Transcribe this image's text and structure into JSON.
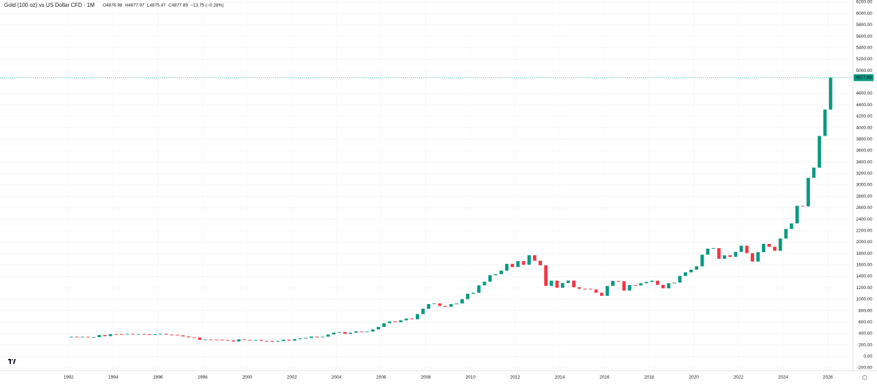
{
  "chart_data": {
    "type": "candlestick",
    "title": "Gold (100 oz) vs US Dollar CFD · 1M",
    "ohlc_text": [
      "O4876.98",
      "H4877.97",
      "L4875.47",
      "C4877.89",
      "−13.75 (−0.28%)"
    ],
    "up_color": "#089981",
    "down_color": "#f23645",
    "price_line": 4877.89,
    "grid": true,
    "xlim": [
      1988.93,
      2027.13
    ],
    "xticks": [
      1992,
      1994,
      1996,
      1998,
      2000,
      2002,
      2004,
      2006,
      2008,
      2010,
      2012,
      2014,
      2016,
      2018,
      2020,
      2022,
      2024,
      2026
    ],
    "ylim": [
      -200,
      6200
    ],
    "yticks": [
      {
        "value": -200,
        "label": "-200.00"
      },
      {
        "value": 0,
        "label": "0.00"
      },
      {
        "value": 200,
        "label": "200.00"
      },
      {
        "value": 400,
        "label": "400.00"
      },
      {
        "value": 600,
        "label": "600.00"
      },
      {
        "value": 800,
        "label": "800.00"
      },
      {
        "value": 1000,
        "label": "1000.00"
      },
      {
        "value": 1200,
        "label": "1200.00"
      },
      {
        "value": 1400,
        "label": "1400.00"
      },
      {
        "value": 1600,
        "label": "1600.00"
      },
      {
        "value": 1800,
        "label": "1800.00"
      },
      {
        "value": 2000,
        "label": "2000.00"
      },
      {
        "value": 2200,
        "label": "2200.00"
      },
      {
        "value": 2400,
        "label": "2400.00"
      },
      {
        "value": 2600,
        "label": "2600.00"
      },
      {
        "value": 2800,
        "label": "2800.00"
      },
      {
        "value": 3000,
        "label": "3000.00"
      },
      {
        "value": 3200,
        "label": "3200.00"
      },
      {
        "value": 3400,
        "label": "3400.00"
      },
      {
        "value": 3600,
        "label": "3600.00"
      },
      {
        "value": 3800,
        "label": "3800.00"
      },
      {
        "value": 4000,
        "label": "4000.00"
      },
      {
        "value": 4200,
        "label": "4200.00"
      },
      {
        "value": 4400,
        "label": "4400.00"
      },
      {
        "value": 4600,
        "label": "4600.00"
      },
      {
        "value": 5000,
        "label": "5000.00"
      },
      {
        "value": 5200,
        "label": "5200.00"
      },
      {
        "value": 5400,
        "label": "5400.00"
      },
      {
        "value": 5600,
        "label": "5600.00"
      },
      {
        "value": 5800,
        "label": "5800.00"
      },
      {
        "value": 6000,
        "label": "6000.00"
      },
      {
        "value": 6200,
        "label": "6200.00"
      }
    ],
    "x": [
      1992.125,
      1992.375,
      1992.625,
      1992.875,
      1993.125,
      1993.375,
      1993.625,
      1993.875,
      1994.125,
      1994.375,
      1994.625,
      1994.875,
      1995.125,
      1995.375,
      1995.625,
      1995.875,
      1996.125,
      1996.375,
      1996.625,
      1996.875,
      1997.125,
      1997.375,
      1997.625,
      1997.875,
      1998.125,
      1998.375,
      1998.625,
      1998.875,
      1999.125,
      1999.375,
      1999.625,
      1999.875,
      2000.125,
      2000.375,
      2000.625,
      2000.875,
      2001.125,
      2001.375,
      2001.625,
      2001.875,
      2002.125,
      2002.375,
      2002.625,
      2002.875,
      2003.125,
      2003.375,
      2003.625,
      2003.875,
      2004.125,
      2004.375,
      2004.625,
      2004.875,
      2005.125,
      2005.375,
      2005.625,
      2005.875,
      2006.125,
      2006.375,
      2006.625,
      2006.875,
      2007.125,
      2007.375,
      2007.625,
      2007.875,
      2008.125,
      2008.375,
      2008.625,
      2008.875,
      2009.125,
      2009.375,
      2009.625,
      2009.875,
      2010.125,
      2010.375,
      2010.625,
      2010.875,
      2011.125,
      2011.375,
      2011.625,
      2011.875,
      2012.125,
      2012.375,
      2012.625,
      2012.875,
      2013.125,
      2013.375,
      2013.625,
      2013.875,
      2014.125,
      2014.375,
      2014.625,
      2014.875,
      2015.125,
      2015.375,
      2015.625,
      2015.875,
      2016.125,
      2016.375,
      2016.625,
      2016.875,
      2017.125,
      2017.375,
      2017.625,
      2017.875,
      2018.125,
      2018.375,
      2018.625,
      2018.875,
      2019.125,
      2019.375,
      2019.625,
      2019.875,
      2020.125,
      2020.375,
      2020.625,
      2020.875,
      2021.125,
      2021.375,
      2021.625,
      2021.875,
      2022.125,
      2022.375,
      2022.625,
      2022.875,
      2023.125,
      2023.375,
      2023.625,
      2023.875,
      2024.125,
      2024.375,
      2024.625,
      2024.875,
      2025.125,
      2025.375,
      2025.625,
      2025.875,
      2026.125
    ],
    "close": [
      345,
      340,
      345,
      333,
      337,
      375,
      355,
      391,
      390,
      385,
      395,
      383,
      392,
      387,
      384,
      387,
      396,
      382,
      379,
      369,
      350,
      334,
      332,
      290,
      297,
      296,
      293,
      288,
      280,
      262,
      299,
      290,
      278,
      288,
      273,
      272,
      258,
      270,
      293,
      277,
      302,
      318,
      324,
      347,
      334,
      346,
      385,
      416,
      427,
      395,
      415,
      438,
      429,
      436,
      473,
      517,
      582,
      613,
      599,
      632,
      663,
      650,
      742,
      834,
      916,
      928,
      884,
      869,
      916,
      926,
      1003,
      1096,
      1113,
      1244,
      1307,
      1421,
      1439,
      1500,
      1620,
      1564,
      1668,
      1604,
      1772,
      1675,
      1595,
      1234,
      1326,
      1202,
      1284,
      1327,
      1210,
      1184,
      1183,
      1172,
      1115,
      1061,
      1233,
      1322,
      1315,
      1152,
      1249,
      1242,
      1280,
      1303,
      1325,
      1253,
      1192,
      1282,
      1292,
      1409,
      1472,
      1517,
      1577,
      1781,
      1886,
      1895,
      1708,
      1770,
      1743,
      1829,
      1937,
      1807,
      1661,
      1824,
      1969,
      1919,
      1849,
      2063,
      2230,
      2327,
      2635,
      2625,
      3124,
      3303,
      3858,
      4320,
      4877.89
    ]
  }
}
